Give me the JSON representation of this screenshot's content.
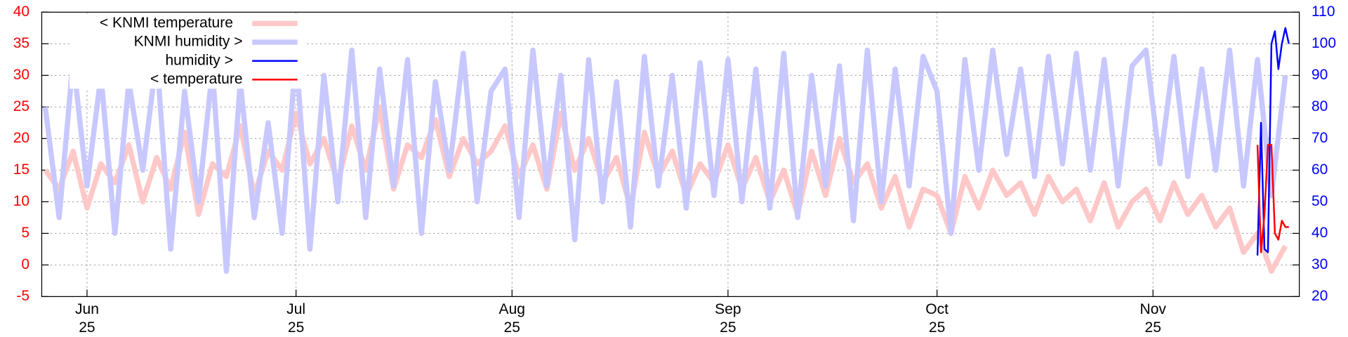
{
  "chart_data": {
    "type": "line",
    "xlim": [
      -6.5,
      174
    ],
    "xticks": [
      {
        "value": 0,
        "label": "Jun\n25"
      },
      {
        "value": 30,
        "label": "Jul\n25"
      },
      {
        "value": 61,
        "label": "Aug\n25"
      },
      {
        "value": 92,
        "label": "Sep\n25"
      },
      {
        "value": 122,
        "label": "Oct\n25"
      },
      {
        "value": 153,
        "label": "Nov\n25"
      }
    ],
    "ylim": [
      -5,
      40
    ],
    "yticks": [
      -5,
      0,
      5,
      10,
      15,
      20,
      25,
      30,
      35,
      40
    ],
    "ytick_color": "#ff0000",
    "y2lim": [
      20,
      110
    ],
    "y2ticks": [
      20,
      30,
      40,
      50,
      60,
      70,
      80,
      90,
      100,
      110
    ],
    "y2tick_color": "#0000ff",
    "grid": true,
    "legend": "top-left",
    "series": [
      {
        "name": "< KNMI temperature",
        "color": "#ffc8c8",
        "width": 6,
        "axis": "y",
        "x": [
          -6,
          -4,
          -2,
          0,
          2,
          4,
          6,
          8,
          10,
          12,
          14,
          16,
          18,
          20,
          22,
          24,
          26,
          28,
          30,
          32,
          34,
          36,
          38,
          40,
          42,
          44,
          46,
          48,
          50,
          52,
          54,
          56,
          58,
          60,
          62,
          64,
          66,
          68,
          70,
          72,
          74,
          76,
          78,
          80,
          82,
          84,
          86,
          88,
          90,
          92,
          94,
          96,
          98,
          100,
          102,
          104,
          106,
          108,
          110,
          112,
          114,
          116,
          118,
          120,
          122,
          124,
          126,
          128,
          130,
          132,
          134,
          136,
          138,
          140,
          142,
          144,
          146,
          148,
          150,
          152,
          154,
          156,
          158,
          160,
          162,
          164,
          166,
          168,
          170,
          172
        ],
        "values": [
          15,
          12,
          18,
          9,
          16,
          13,
          19,
          10,
          17,
          12,
          21,
          8,
          16,
          14,
          22,
          11,
          18,
          15,
          24,
          16,
          20,
          13,
          22,
          15,
          25,
          12,
          19,
          17,
          23,
          14,
          20,
          16,
          18,
          22,
          14,
          19,
          12,
          24,
          15,
          20,
          13,
          17,
          9,
          21,
          14,
          18,
          11,
          16,
          13,
          19,
          12,
          17,
          10,
          15,
          8,
          18,
          11,
          20,
          13,
          16,
          9,
          14,
          6,
          12,
          11,
          5,
          14,
          9,
          15,
          11,
          13,
          8,
          14,
          10,
          12,
          7,
          13,
          6,
          10,
          12,
          7,
          13,
          8,
          11,
          6,
          9,
          2,
          5,
          -1,
          3
        ]
      },
      {
        "name": "KNMI humidity >",
        "color": "#c8c8ff",
        "width": 6,
        "axis": "y2",
        "x": [
          -6,
          -4,
          -2,
          0,
          2,
          4,
          6,
          8,
          10,
          12,
          14,
          16,
          18,
          20,
          22,
          24,
          26,
          28,
          30,
          32,
          34,
          36,
          38,
          40,
          42,
          44,
          46,
          48,
          50,
          52,
          54,
          56,
          58,
          60,
          62,
          64,
          66,
          68,
          70,
          72,
          74,
          76,
          78,
          80,
          82,
          84,
          86,
          88,
          90,
          92,
          94,
          96,
          98,
          100,
          102,
          104,
          106,
          108,
          110,
          112,
          114,
          116,
          118,
          120,
          122,
          124,
          126,
          128,
          130,
          132,
          134,
          136,
          138,
          140,
          142,
          144,
          146,
          148,
          150,
          152,
          154,
          156,
          158,
          160,
          162,
          164,
          166,
          168,
          170,
          172
        ],
        "values": [
          80,
          45,
          95,
          55,
          90,
          40,
          88,
          60,
          96,
          35,
          85,
          50,
          92,
          28,
          88,
          45,
          75,
          40,
          97,
          35,
          90,
          50,
          98,
          45,
          92,
          55,
          95,
          40,
          88,
          60,
          97,
          50,
          85,
          92,
          45,
          98,
          55,
          90,
          38,
          95,
          50,
          88,
          42,
          96,
          55,
          90,
          48,
          94,
          52,
          95,
          50,
          92,
          48,
          97,
          45,
          90,
          55,
          93,
          44,
          98,
          50,
          92,
          55,
          96,
          85,
          40,
          95,
          60,
          98,
          65,
          92,
          58,
          96,
          62,
          97,
          60,
          95,
          55,
          93,
          98,
          62,
          96,
          58,
          92,
          60,
          98,
          55,
          95,
          52,
          90
        ]
      },
      {
        "name": "humidity >",
        "color": "#0000ff",
        "width": 2,
        "axis": "y2",
        "x": [
          168,
          168.5,
          169,
          169.5,
          170,
          170.5,
          171,
          171.5,
          172,
          172.5
        ],
        "values": [
          33,
          75,
          35,
          34,
          100,
          104,
          92,
          100,
          105,
          100
        ]
      },
      {
        "name": "< temperature",
        "color": "#ff0000",
        "width": 2,
        "axis": "y",
        "x": [
          168,
          168.5,
          169,
          169.5,
          170,
          170.5,
          171,
          171.5,
          172,
          172.5
        ],
        "values": [
          19,
          2,
          8,
          19,
          19,
          5,
          4,
          7,
          6,
          6
        ]
      }
    ]
  }
}
